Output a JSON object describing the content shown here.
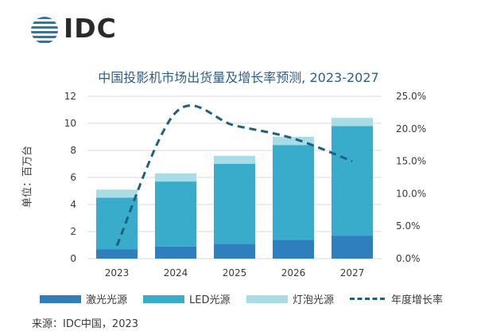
{
  "brand": {
    "name": "IDC"
  },
  "source": "来源：IDC中国，2023",
  "colors": {
    "laser": "#2f7fbf",
    "led": "#3aaccb",
    "lamp": "#a9dde6",
    "growth": "#1f5f82",
    "grid": "#d9d9d9"
  },
  "chart_data": {
    "type": "bar",
    "title": "中国投影机市场出货量及增长率预测, 2023-2027",
    "ylabel": "单位：百万台",
    "categories": [
      "2023",
      "2024",
      "2025",
      "2026",
      "2027"
    ],
    "ylim": [
      0,
      12
    ],
    "yticks": [
      "0",
      "2",
      "4",
      "6",
      "8",
      "10",
      "12"
    ],
    "y2lim": [
      0,
      25
    ],
    "y2ticks": [
      "0.0%",
      "5.0%",
      "10.0%",
      "15.0%",
      "20.0%",
      "25.0%"
    ],
    "stacked": true,
    "series": [
      {
        "name": "激光光源",
        "type": "bar",
        "axis": "left",
        "color": "#2f7fbf",
        "values": [
          0.7,
          0.9,
          1.1,
          1.4,
          1.7
        ]
      },
      {
        "name": "LED光源",
        "type": "bar",
        "axis": "left",
        "color": "#3aaccb",
        "values": [
          3.8,
          4.8,
          5.9,
          7.0,
          8.1
        ]
      },
      {
        "name": "灯泡光源",
        "type": "bar",
        "axis": "left",
        "color": "#a9dde6",
        "values": [
          0.6,
          0.6,
          0.6,
          0.6,
          0.6
        ]
      },
      {
        "name": "年度增长率",
        "type": "line",
        "style": "dashed",
        "axis": "right",
        "color": "#1f5f82",
        "values": [
          2.0,
          22.5,
          20.5,
          18.5,
          15.0
        ]
      }
    ],
    "grid": true,
    "legend": "bottom"
  }
}
